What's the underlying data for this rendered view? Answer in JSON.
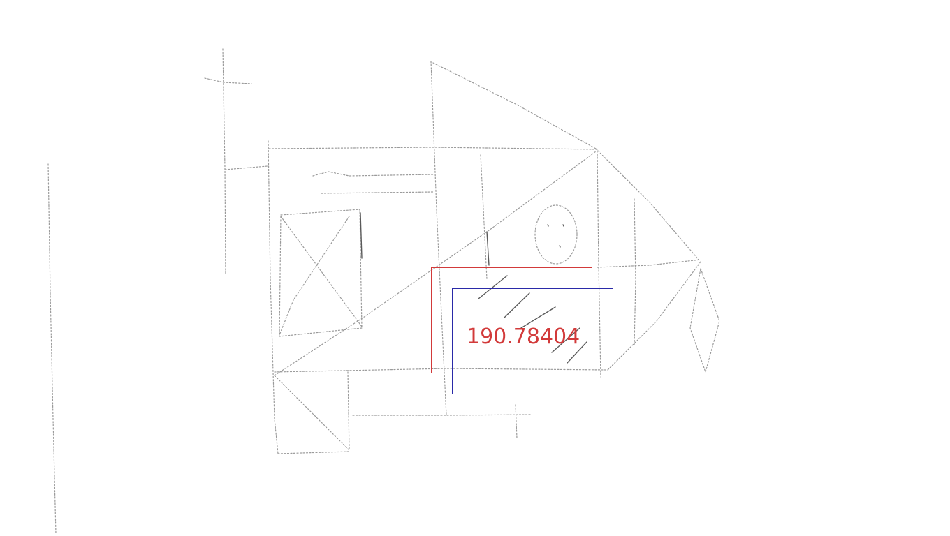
{
  "detection": {
    "score_label": "190.78404",
    "predicted_box_color": "#d23a3a",
    "ground_truth_box_color": "#2a2aa8"
  },
  "sketch": {
    "stroke_color": "#9a9a9a",
    "background": "#ffffff"
  }
}
